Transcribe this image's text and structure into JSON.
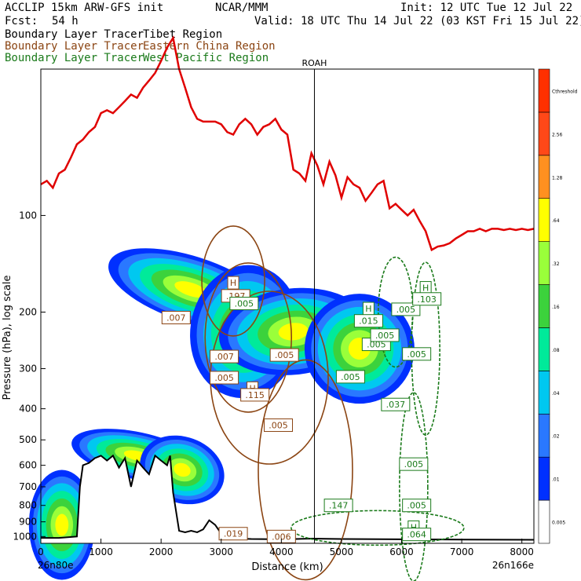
{
  "header": {
    "model": "ACCLIP 15km ARW-GFS init",
    "org": "NCAR/MMM",
    "init": "Init: 12 UTC Tue 12 Jul 22",
    "fcst_label": "Fcst:",
    "fcst_value": "54 h",
    "valid": "Valid: 18 UTC Thu 14 Jul 22 (03 KST Fri 15 Jul 22)"
  },
  "tracers": [
    {
      "name": "Boundary Layer Tracer",
      "region": "Tibet Region",
      "color": "#000000"
    },
    {
      "name": "Boundary Layer Tracer",
      "region": "Eastern China Region",
      "color": "#8b4513"
    },
    {
      "name": "Boundary Layer Tracer",
      "region": "West Pacific Region",
      "color": "#1a7a1a"
    }
  ],
  "colors": {
    "tropopause": "#e00000",
    "terrain": "#000000",
    "eastern_china_contour": "#8b4513",
    "west_pacific_contour": "#1a7a1a"
  },
  "chart_data": {
    "type": "heatmap",
    "xlabel": "Distance (km)",
    "ylabel": "Pressure (hPa), log scale",
    "xlim": [
      0,
      8200
    ],
    "ylim": [
      1050,
      35
    ],
    "log_y": true,
    "x_ticks": [
      0,
      1000,
      2000,
      3000,
      4000,
      5000,
      6000,
      7000,
      8000
    ],
    "y_ticks": [
      100,
      200,
      300,
      400,
      500,
      600,
      700,
      800,
      900,
      1000
    ],
    "x_ends": {
      "left": "26n80e",
      "right": "26n166e"
    },
    "marker": {
      "label": "ROAH",
      "x": 4550
    },
    "colorbar": {
      "levels": [
        "0.005",
        ".01",
        ".02",
        ".04",
        ".08",
        ".16",
        ".32",
        ".64",
        "1.28",
        "2.56",
        "Cthreshold"
      ],
      "colors": [
        "#ffffff",
        "#0030ff",
        "#2a78ff",
        "#00c8f0",
        "#00ea9a",
        "#3cd23c",
        "#9aff3a",
        "#ffff00",
        "#ff9020",
        "#ff4818",
        "#ff3000"
      ]
    },
    "tropopause": {
      "x": [
        0,
        100,
        200,
        300,
        400,
        500,
        600,
        700,
        800,
        900,
        1000,
        1100,
        1200,
        1300,
        1400,
        1500,
        1600,
        1700,
        1800,
        1900,
        2000,
        2100,
        2200,
        2300,
        2400,
        2500,
        2600,
        2700,
        2800,
        2900,
        3000,
        3100,
        3200,
        3300,
        3400,
        3500,
        3600,
        3700,
        3800,
        3900,
        4000,
        4100,
        4200,
        4300,
        4400,
        4500,
        4600,
        4700,
        4800,
        4900,
        5000,
        5100,
        5200,
        5300,
        5400,
        5500,
        5600,
        5700,
        5800,
        5900,
        6000,
        6100,
        6200,
        6300,
        6400,
        6500,
        6600,
        6700,
        6800,
        6900,
        7000,
        7100,
        7200,
        7300,
        7400,
        7500,
        7600,
        7700,
        7800,
        7900,
        8000,
        8100,
        8200
      ],
      "p": [
        80,
        78,
        82,
        74,
        72,
        66,
        60,
        58,
        55,
        53,
        48,
        47,
        48,
        46,
        44,
        42,
        43,
        40,
        38,
        36,
        33,
        30,
        28,
        35,
        40,
        46,
        50,
        51,
        51,
        51,
        52,
        55,
        56,
        52,
        50,
        52,
        56,
        53,
        52,
        50,
        54,
        56,
        72,
        74,
        78,
        64,
        70,
        80,
        68,
        75,
        88,
        76,
        80,
        82,
        90,
        85,
        80,
        78,
        95,
        92,
        96,
        100,
        96,
        104,
        112,
        128,
        125,
        124,
        122,
        118,
        115,
        112,
        112,
        110,
        112,
        110,
        110,
        111,
        110,
        111,
        110,
        111,
        110
      ]
    },
    "terrain": {
      "x": [
        0,
        300,
        600,
        650,
        700,
        800,
        900,
        1000,
        1100,
        1200,
        1300,
        1400,
        1500,
        1600,
        1700,
        1800,
        1900,
        2000,
        2100,
        2150,
        2200,
        2300,
        2400,
        2500,
        2600,
        2700,
        2800,
        2900,
        3000,
        3100,
        3200,
        3300,
        3500,
        4000,
        4500,
        5000,
        6000,
        7000,
        8200
      ],
      "p": [
        1010,
        1010,
        1000,
        700,
        600,
        590,
        570,
        560,
        580,
        560,
        610,
        570,
        700,
        580,
        610,
        640,
        560,
        580,
        600,
        560,
        730,
        960,
        970,
        960,
        970,
        950,
        890,
        920,
        980,
        1000,
        1010,
        1015,
        1018,
        1020,
        1015,
        1018,
        1020,
        1022,
        1024
      ]
    },
    "labels": [
      {
        "text": "H",
        "x": 3200,
        "p": 162,
        "color": "#8b4513"
      },
      {
        "text": ".197",
        "x": 3240,
        "p": 178,
        "color": "#8b4513"
      },
      {
        "text": ".005",
        "x": 3380,
        "p": 188,
        "color": "#1a7a1a"
      },
      {
        "text": ".007",
        "x": 2250,
        "p": 208,
        "color": "#8b4513"
      },
      {
        "text": ".007",
        "x": 3050,
        "p": 275,
        "color": "#8b4513"
      },
      {
        "text": ".005",
        "x": 4050,
        "p": 272,
        "color": "#8b4513"
      },
      {
        "text": ".005",
        "x": 3050,
        "p": 320,
        "color": "#8b4513"
      },
      {
        "text": "H",
        "x": 3520,
        "p": 345,
        "color": "#8b4513"
      },
      {
        "text": ".115",
        "x": 3560,
        "p": 362,
        "color": "#8b4513"
      },
      {
        "text": ".005",
        "x": 3950,
        "p": 450,
        "color": "#8b4513"
      },
      {
        "text": ".019",
        "x": 3200,
        "p": 980,
        "color": "#8b4513"
      },
      {
        "text": ".006",
        "x": 4000,
        "p": 1000,
        "color": "#8b4513"
      },
      {
        "text": "H",
        "x": 5450,
        "p": 195,
        "color": "#1a7a1a"
      },
      {
        "text": ".015",
        "x": 5450,
        "p": 213,
        "color": "#1a7a1a"
      },
      {
        "text": ".005",
        "x": 5580,
        "p": 252,
        "color": "#1a7a1a"
      },
      {
        "text": ".005",
        "x": 5720,
        "p": 236,
        "color": "#1a7a1a"
      },
      {
        "text": ".005",
        "x": 6070,
        "p": 196,
        "color": "#1a7a1a"
      },
      {
        "text": "H",
        "x": 6400,
        "p": 168,
        "color": "#1a7a1a"
      },
      {
        "text": ".103",
        "x": 6420,
        "p": 182,
        "color": "#1a7a1a"
      },
      {
        "text": ".005",
        "x": 6250,
        "p": 270,
        "color": "#1a7a1a"
      },
      {
        "text": ".005",
        "x": 5150,
        "p": 318,
        "color": "#1a7a1a"
      },
      {
        "text": ".037",
        "x": 5900,
        "p": 388,
        "color": "#1a7a1a"
      },
      {
        "text": ".005",
        "x": 6200,
        "p": 595,
        "color": "#1a7a1a"
      },
      {
        "text": ".147",
        "x": 4950,
        "p": 800,
        "color": "#1a7a1a"
      },
      {
        "text": ".005",
        "x": 6250,
        "p": 800,
        "color": "#1a7a1a"
      },
      {
        "text": "H",
        "x": 6200,
        "p": 935,
        "color": "#1a7a1a"
      },
      {
        "text": ".064",
        "x": 6250,
        "p": 985,
        "color": "#1a7a1a"
      }
    ]
  }
}
